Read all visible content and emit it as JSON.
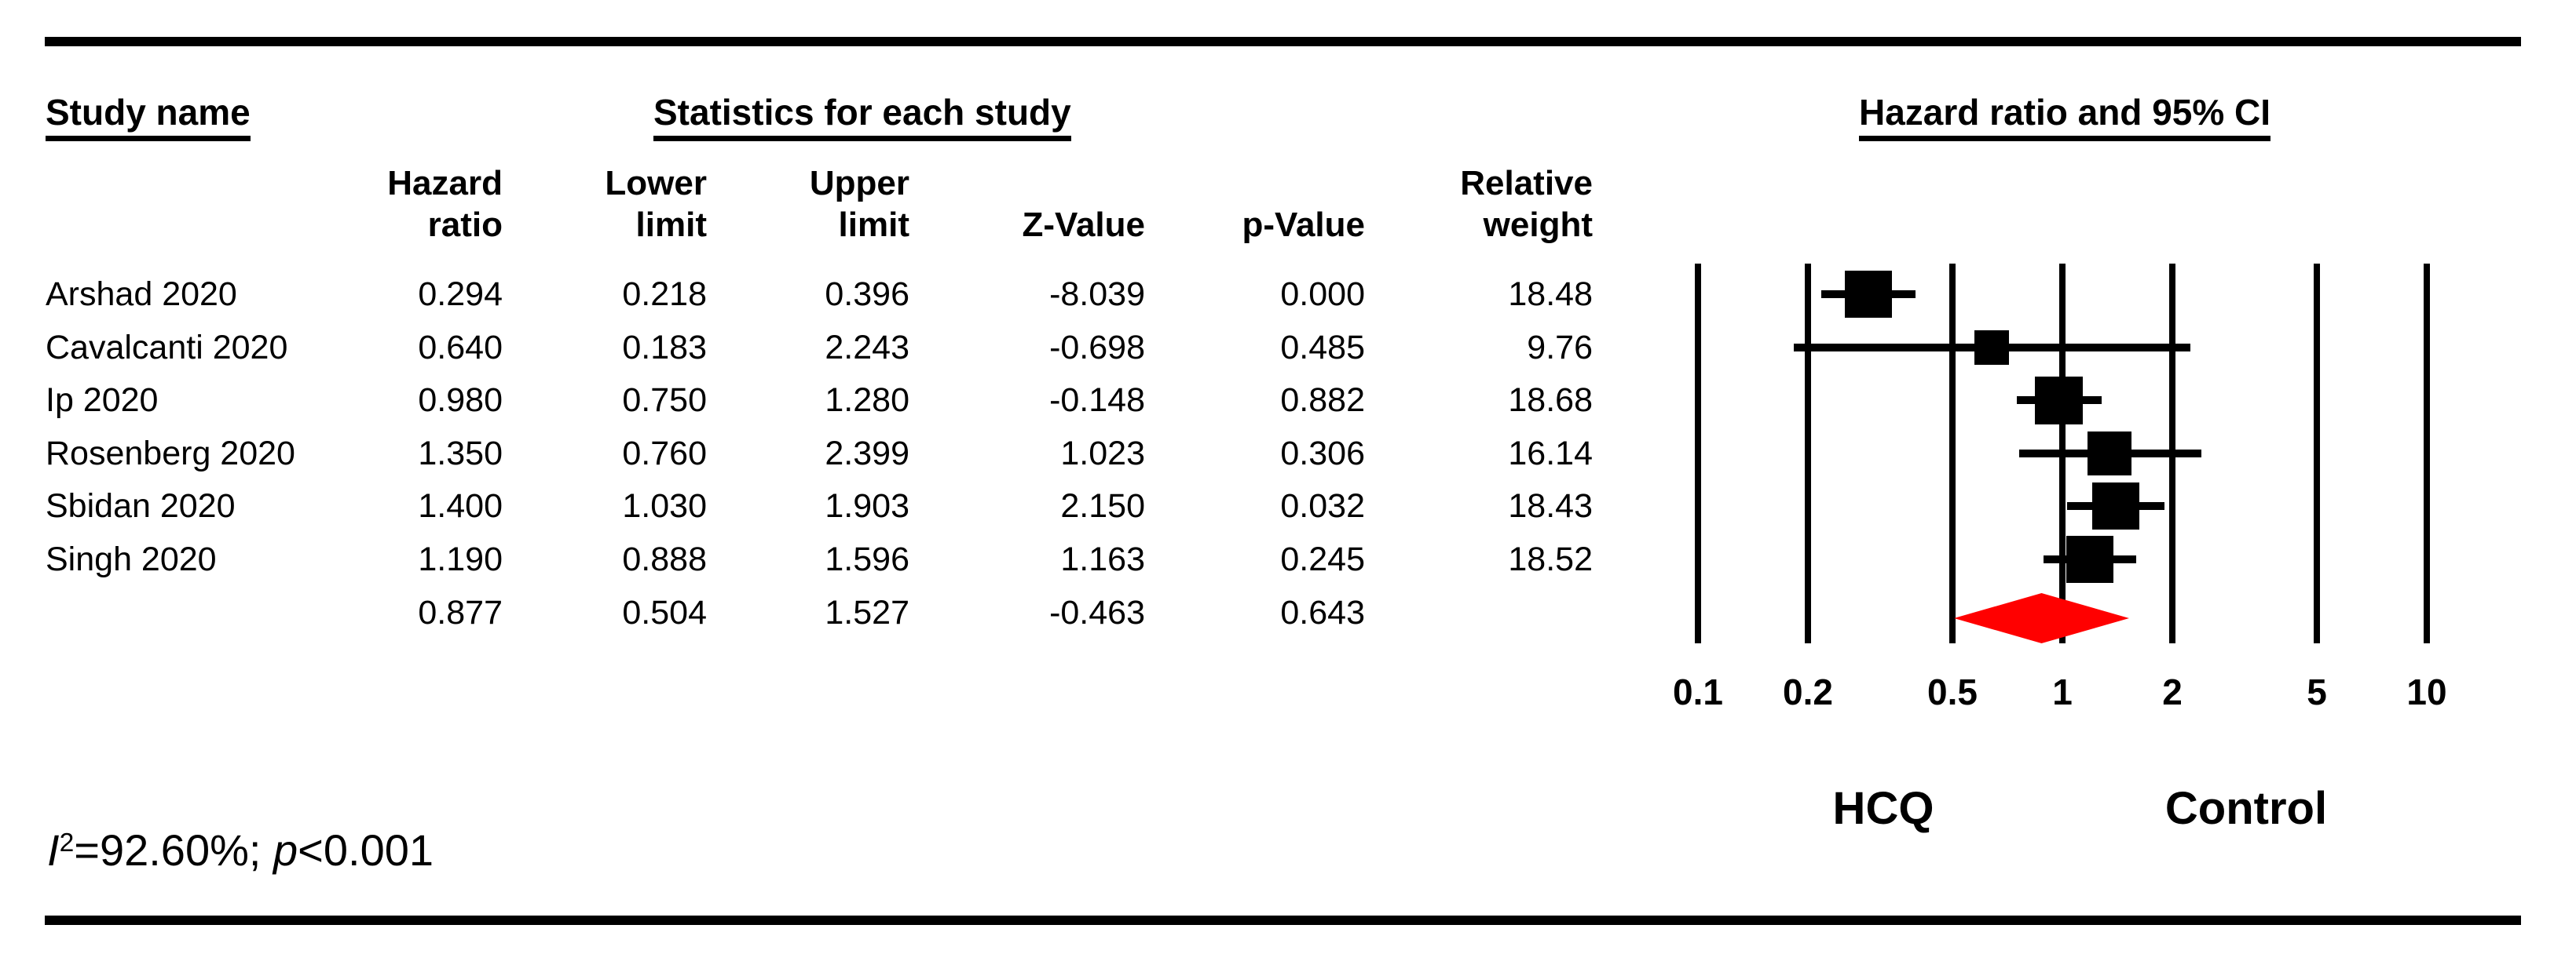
{
  "header": {
    "study_col": "Study name",
    "stats_group": "Statistics for each study",
    "columns": [
      {
        "line1": "Hazard",
        "line2": "ratio"
      },
      {
        "line1": "Lower",
        "line2": "limit"
      },
      {
        "line1": "Upper",
        "line2": "limit"
      },
      {
        "line1": "",
        "line2": "Z-Value"
      },
      {
        "line1": "",
        "line2": "p-Value"
      },
      {
        "line1": "Relative",
        "line2": "weight"
      }
    ]
  },
  "chart_data": {
    "type": "forest",
    "title": "Hazard ratio and 95% CI",
    "x_axis": {
      "scale": "log",
      "ticks": [
        0.1,
        0.2,
        0.5,
        1,
        2,
        5,
        10
      ],
      "tick_labels": [
        "0.1",
        "0.2",
        "0.5",
        "1",
        "2",
        "5",
        "10"
      ]
    },
    "studies": [
      {
        "name": "Arshad 2020",
        "hazard_ratio": "0.294",
        "lower": "0.218",
        "upper": "0.396",
        "z": "-8.039",
        "p": "0.000",
        "weight": "18.48"
      },
      {
        "name": "Cavalcanti 2020",
        "hazard_ratio": "0.640",
        "lower": "0.183",
        "upper": "2.243",
        "z": "-0.698",
        "p": "0.485",
        "weight": "9.76"
      },
      {
        "name": "Ip 2020",
        "hazard_ratio": "0.980",
        "lower": "0.750",
        "upper": "1.280",
        "z": "-0.148",
        "p": "0.882",
        "weight": "18.68"
      },
      {
        "name": "Rosenberg 2020",
        "hazard_ratio": "1.350",
        "lower": "0.760",
        "upper": "2.399",
        "z": "1.023",
        "p": "0.306",
        "weight": "16.14"
      },
      {
        "name": "Sbidan 2020",
        "hazard_ratio": "1.400",
        "lower": "1.030",
        "upper": "1.903",
        "z": "2.150",
        "p": "0.032",
        "weight": "18.43"
      },
      {
        "name": "Singh 2020",
        "hazard_ratio": "1.190",
        "lower": "0.888",
        "upper": "1.596",
        "z": "1.163",
        "p": "0.245",
        "weight": "18.52"
      }
    ],
    "summary": {
      "hazard_ratio": "0.877",
      "lower": "0.504",
      "upper": "1.527",
      "z": "-0.463",
      "p": "0.643",
      "weight": ""
    },
    "summary_color": "#ff0000",
    "marker_color": "#000000",
    "group_labels": {
      "left": "HCQ",
      "right": "Control"
    }
  },
  "footer": {
    "i_symbol": "I",
    "i_sup": "2",
    "i_value": "=92.60%; ",
    "p_symbol": "p",
    "p_value": "<0.001"
  }
}
